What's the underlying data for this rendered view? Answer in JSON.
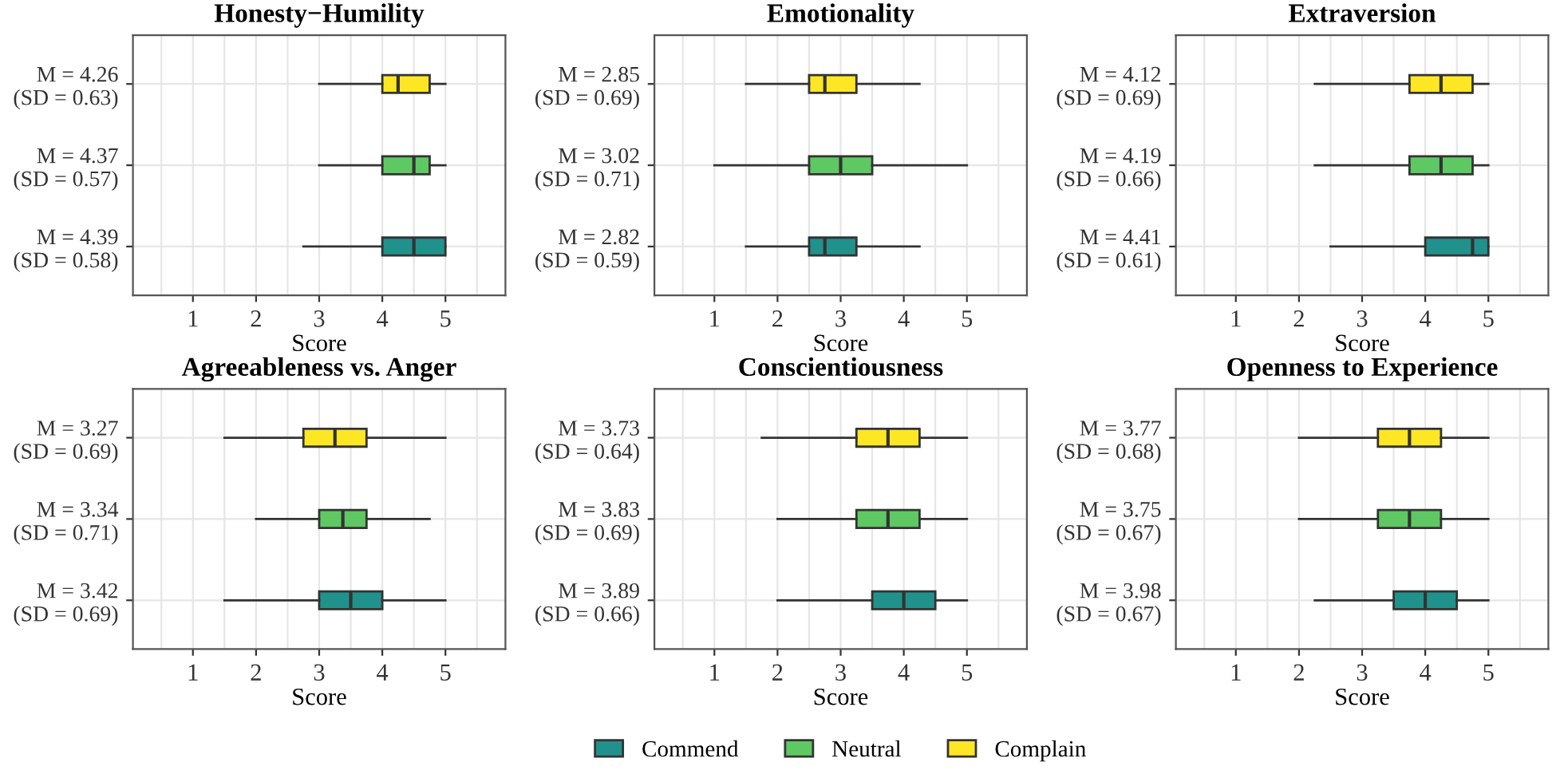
{
  "chart_data": [
    {
      "type": "box",
      "orientation": "horizontal",
      "title": "Honesty−Humility",
      "xlabel": "Score",
      "categories": [
        "M = 4.26\n(SD = 0.63)",
        "M = 4.37\n(SD = 0.57)",
        "M = 4.39\n(SD = 0.58)"
      ],
      "xlim": [
        0.05,
        5.95
      ],
      "xticks": [
        {
          "value": 0.5,
          "label": null
        },
        1,
        {
          "value": 1.5,
          "label": null
        },
        2,
        {
          "value": 2.5,
          "label": null
        },
        3,
        {
          "value": 3.5,
          "label": null
        },
        4,
        {
          "value": 4.5,
          "label": null
        },
        5,
        {
          "value": 5.5,
          "label": null
        }
      ],
      "grid": true,
      "series": [
        {
          "color": "#fde725",
          "boxes": [
            {
              "low": 3,
              "q1": 4,
              "median": 4.25,
              "q3": 4.75,
              "high": 5
            },
            null,
            null
          ]
        },
        {
          "color": "#5ec962",
          "boxes": [
            null,
            {
              "low": 3,
              "q1": 4,
              "median": 4.5,
              "q3": 4.75,
              "high": 5
            },
            null
          ]
        },
        {
          "color": "#21918c",
          "boxes": [
            null,
            null,
            {
              "low": 2.75,
              "q1": 4,
              "median": 4.5,
              "q3": 5,
              "high": 5
            }
          ]
        }
      ]
    },
    {
      "type": "box",
      "orientation": "horizontal",
      "title": "Emotionality",
      "xlabel": "Score",
      "categories": [
        "M = 2.85\n(SD = 0.69)",
        "M = 3.02\n(SD = 0.71)",
        "M = 2.82\n(SD = 0.59)"
      ],
      "xlim": [
        0.05,
        5.95
      ],
      "xticks": [
        {
          "value": 0.5,
          "label": null
        },
        1,
        {
          "value": 1.5,
          "label": null
        },
        2,
        {
          "value": 2.5,
          "label": null
        },
        3,
        {
          "value": 3.5,
          "label": null
        },
        4,
        {
          "value": 4.5,
          "label": null
        },
        5,
        {
          "value": 5.5,
          "label": null
        }
      ],
      "grid": true,
      "series": [
        {
          "color": "#fde725",
          "boxes": [
            {
              "low": 1.5,
              "q1": 2.5,
              "median": 2.75,
              "q3": 3.25,
              "high": 4.25
            },
            null,
            null
          ]
        },
        {
          "color": "#5ec962",
          "boxes": [
            null,
            {
              "low": 1,
              "q1": 2.5,
              "median": 3,
              "q3": 3.5,
              "high": 5
            },
            null
          ]
        },
        {
          "color": "#21918c",
          "boxes": [
            null,
            null,
            {
              "low": 1.5,
              "q1": 2.5,
              "median": 2.75,
              "q3": 3.25,
              "high": 4.25
            }
          ]
        }
      ]
    },
    {
      "type": "box",
      "orientation": "horizontal",
      "title": "Extraversion",
      "xlabel": "Score",
      "categories": [
        "M = 4.12\n(SD = 0.69)",
        "M = 4.19\n(SD = 0.66)",
        "M = 4.41\n(SD = 0.61)"
      ],
      "xlim": [
        0.05,
        5.95
      ],
      "xticks": [
        {
          "value": 0.5,
          "label": null
        },
        1,
        {
          "value": 1.5,
          "label": null
        },
        2,
        {
          "value": 2.5,
          "label": null
        },
        3,
        {
          "value": 3.5,
          "label": null
        },
        4,
        {
          "value": 4.5,
          "label": null
        },
        5,
        {
          "value": 5.5,
          "label": null
        }
      ],
      "grid": true,
      "series": [
        {
          "color": "#fde725",
          "boxes": [
            {
              "low": 2.25,
              "q1": 3.75,
              "median": 4.25,
              "q3": 4.75,
              "high": 5
            },
            null,
            null
          ]
        },
        {
          "color": "#5ec962",
          "boxes": [
            null,
            {
              "low": 2.25,
              "q1": 3.75,
              "median": 4.25,
              "q3": 4.75,
              "high": 5
            },
            null
          ]
        },
        {
          "color": "#21918c",
          "boxes": [
            null,
            null,
            {
              "low": 2.5,
              "q1": 4,
              "median": 4.75,
              "q3": 5,
              "high": 5
            }
          ]
        }
      ]
    },
    {
      "type": "box",
      "orientation": "horizontal",
      "title": "Agreeableness vs. Anger",
      "xlabel": "Score",
      "categories": [
        "M = 3.27\n(SD = 0.69)",
        "M = 3.34\n(SD = 0.71)",
        "M = 3.42\n(SD = 0.69)"
      ],
      "xlim": [
        0.05,
        5.95
      ],
      "xticks": [
        {
          "value": 0.5,
          "label": null
        },
        1,
        {
          "value": 1.5,
          "label": null
        },
        2,
        {
          "value": 2.5,
          "label": null
        },
        3,
        {
          "value": 3.5,
          "label": null
        },
        4,
        {
          "value": 4.5,
          "label": null
        },
        5,
        {
          "value": 5.5,
          "label": null
        }
      ],
      "grid": true,
      "series": [
        {
          "color": "#fde725",
          "boxes": [
            {
              "low": 1.5,
              "q1": 2.75,
              "median": 3.25,
              "q3": 3.75,
              "high": 5
            },
            null,
            null
          ]
        },
        {
          "color": "#5ec962",
          "boxes": [
            null,
            {
              "low": 2,
              "q1": 3,
              "median": 3.375,
              "q3": 3.75,
              "high": 4.75
            },
            null
          ]
        },
        {
          "color": "#21918c",
          "boxes": [
            null,
            null,
            {
              "low": 1.5,
              "q1": 3,
              "median": 3.5,
              "q3": 4,
              "high": 5
            }
          ]
        }
      ]
    },
    {
      "type": "box",
      "orientation": "horizontal",
      "title": "Conscientiousness",
      "xlabel": "Score",
      "categories": [
        "M = 3.73\n(SD = 0.64)",
        "M = 3.83\n(SD = 0.69)",
        "M = 3.89\n(SD = 0.66)"
      ],
      "xlim": [
        0.05,
        5.95
      ],
      "xticks": [
        {
          "value": 0.5,
          "label": null
        },
        1,
        {
          "value": 1.5,
          "label": null
        },
        2,
        {
          "value": 2.5,
          "label": null
        },
        3,
        {
          "value": 3.5,
          "label": null
        },
        4,
        {
          "value": 4.5,
          "label": null
        },
        5,
        {
          "value": 5.5,
          "label": null
        }
      ],
      "grid": true,
      "legend": "bottom",
      "series": [
        {
          "name": "Complain",
          "color": "#fde725",
          "boxes": [
            {
              "low": 1.75,
              "q1": 3.25,
              "median": 3.75,
              "q3": 4.25,
              "high": 5
            },
            null,
            null
          ]
        },
        {
          "name": "Neutral",
          "color": "#5ec962",
          "boxes": [
            null,
            {
              "low": 2,
              "q1": 3.25,
              "median": 3.75,
              "q3": 4.25,
              "high": 5
            },
            null
          ]
        },
        {
          "name": "Commend",
          "color": "#21918c",
          "boxes": [
            null,
            null,
            {
              "low": 2,
              "q1": 3.5,
              "median": 4,
              "q3": 4.5,
              "high": 5
            }
          ]
        }
      ]
    },
    {
      "type": "box",
      "orientation": "horizontal",
      "title": "Openness to Experience",
      "xlabel": "Score",
      "categories": [
        "M = 3.77\n(SD = 0.68)",
        "M = 3.75\n(SD = 0.67)",
        "M = 3.98\n(SD = 0.67)"
      ],
      "xlim": [
        0.05,
        5.95
      ],
      "xticks": [
        {
          "value": 0.5,
          "label": null
        },
        1,
        {
          "value": 1.5,
          "label": null
        },
        2,
        {
          "value": 2.5,
          "label": null
        },
        3,
        {
          "value": 3.5,
          "label": null
        },
        4,
        {
          "value": 4.5,
          "label": null
        },
        5,
        {
          "value": 5.5,
          "label": null
        }
      ],
      "grid": true,
      "series": [
        {
          "color": "#fde725",
          "boxes": [
            {
              "low": 2,
              "q1": 3.25,
              "median": 3.75,
              "q3": 4.25,
              "high": 5
            },
            null,
            null
          ]
        },
        {
          "color": "#5ec962",
          "boxes": [
            null,
            {
              "low": 2,
              "q1": 3.25,
              "median": 3.75,
              "q3": 4.25,
              "high": 5
            },
            null
          ]
        },
        {
          "color": "#21918c",
          "boxes": [
            null,
            null,
            {
              "low": 2.25,
              "q1": 3.5,
              "median": 4,
              "q3": 4.5,
              "high": 5
            }
          ]
        }
      ]
    }
  ]
}
